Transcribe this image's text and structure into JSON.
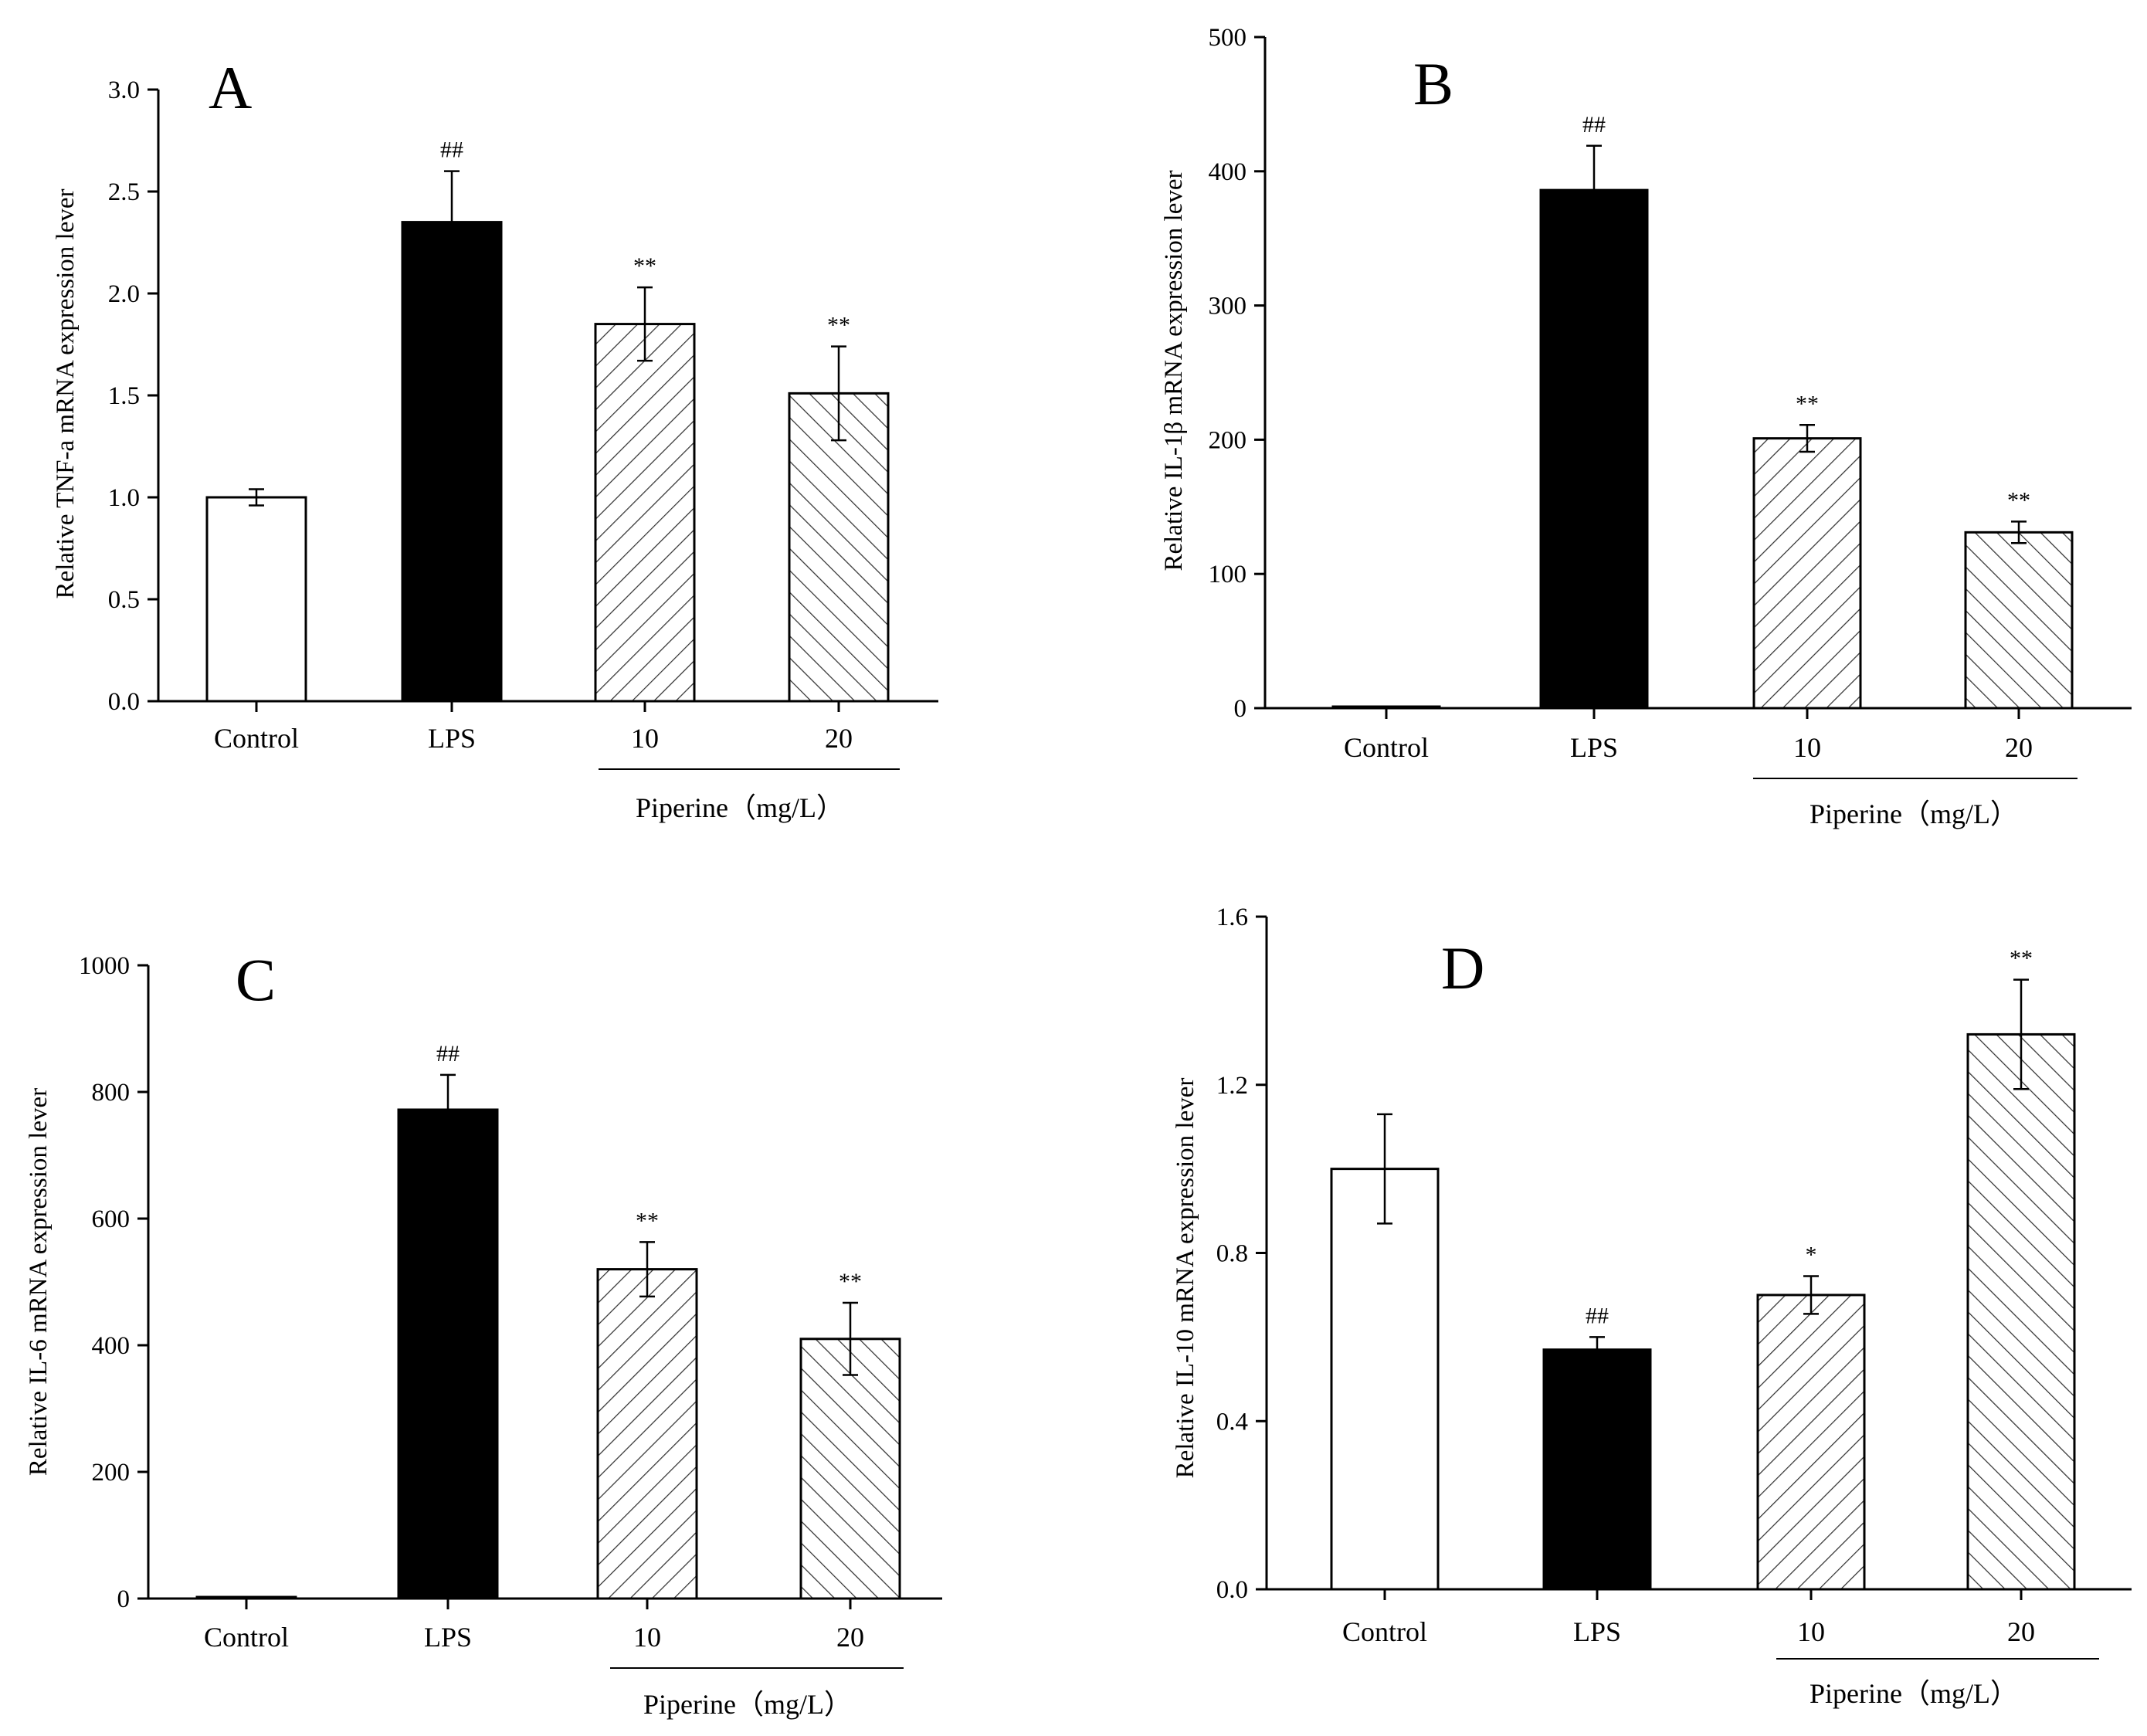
{
  "figure": {
    "panel_count": 4
  },
  "chart_data": [
    {
      "panel": "A",
      "type": "bar",
      "title": "",
      "xlabel": "",
      "ylabel": "Relative TNF-a mRNA expression lever",
      "ylim": [
        0,
        3.0
      ],
      "yticks": [
        "0.0",
        "0.5",
        "1.0",
        "1.5",
        "2.0",
        "2.5",
        "3.0"
      ],
      "categories": [
        "Control",
        "LPS",
        "10",
        "20"
      ],
      "group_label": "Piperine（mg/L）",
      "values": [
        1.0,
        2.35,
        1.85,
        1.51
      ],
      "errors": [
        0.04,
        0.25,
        0.18,
        0.23
      ],
      "significance": [
        "",
        "##",
        "**",
        "**"
      ],
      "fills": [
        "white",
        "black",
        "hatch-fwd",
        "hatch-back"
      ]
    },
    {
      "panel": "B",
      "type": "bar",
      "title": "",
      "xlabel": "",
      "ylabel": "Relative IL-1β mRNA expression lever",
      "ylim": [
        0,
        500
      ],
      "yticks": [
        "0",
        "100",
        "200",
        "300",
        "400",
        "500"
      ],
      "categories": [
        "Control",
        "LPS",
        "10",
        "20"
      ],
      "group_label": "Piperine（mg/L）",
      "values": [
        1,
        386,
        201,
        131
      ],
      "errors": [
        0,
        33,
        10,
        8
      ],
      "significance": [
        "",
        "##",
        "**",
        "**"
      ],
      "fills": [
        "white",
        "black",
        "hatch-fwd",
        "hatch-back"
      ]
    },
    {
      "panel": "C",
      "type": "bar",
      "title": "",
      "xlabel": "",
      "ylabel": "Relative IL-6 mRNA expression lever",
      "ylim": [
        0,
        1000
      ],
      "yticks": [
        "0",
        "200",
        "400",
        "600",
        "800",
        "1000"
      ],
      "categories": [
        "Control",
        "LPS",
        "10",
        "20"
      ],
      "group_label": "Piperine（mg/L）",
      "values": [
        1,
        772,
        520,
        410
      ],
      "errors": [
        0,
        55,
        43,
        57
      ],
      "significance": [
        "",
        "##",
        "**",
        "**"
      ],
      "fills": [
        "white",
        "black",
        "hatch-fwd",
        "hatch-back"
      ]
    },
    {
      "panel": "D",
      "type": "bar",
      "title": "",
      "xlabel": "",
      "ylabel": "Relative IL-10 mRNA expression lever",
      "ylim": [
        0,
        1.6
      ],
      "yticks": [
        "0.0",
        "0.4",
        "0.8",
        "1.2",
        "1.6"
      ],
      "categories": [
        "Control",
        "LPS",
        "10",
        "20"
      ],
      "group_label": "Piperine（mg/L）",
      "values": [
        1.0,
        0.57,
        0.7,
        1.32
      ],
      "errors": [
        0.13,
        0.03,
        0.045,
        0.13
      ],
      "significance": [
        "",
        "##",
        "*",
        "**"
      ],
      "fills": [
        "white",
        "black",
        "hatch-fwd",
        "hatch-back"
      ]
    }
  ]
}
